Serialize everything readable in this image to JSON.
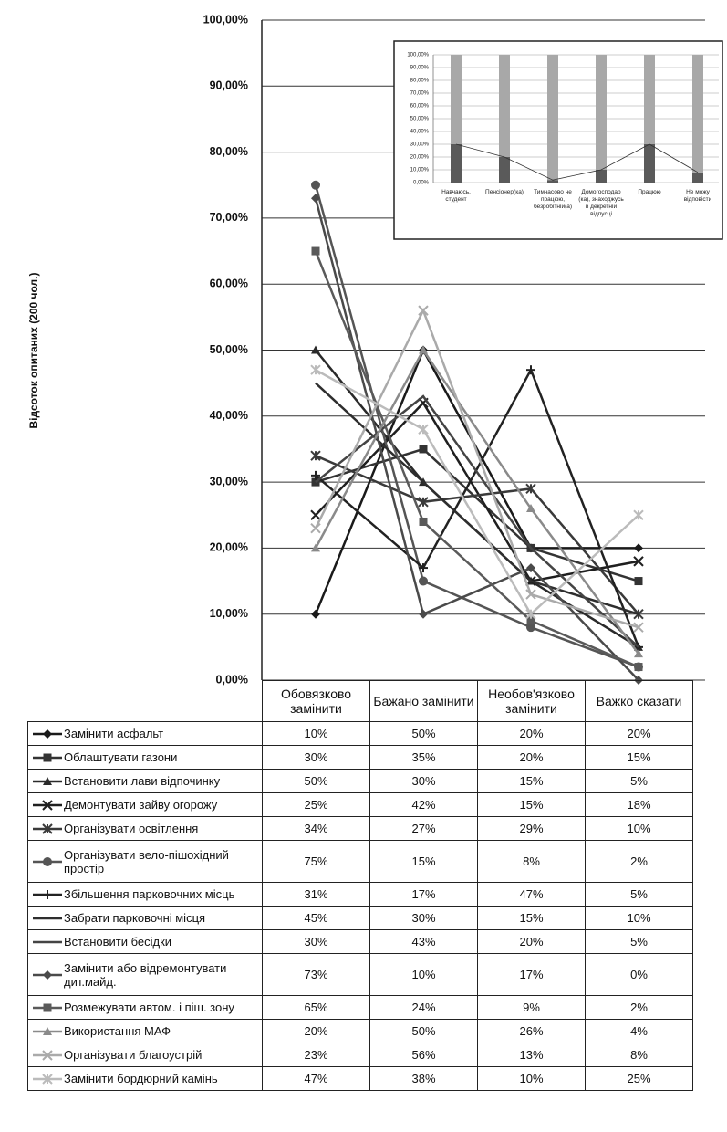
{
  "chart_data": [
    {
      "type": "line",
      "y_label": "Відсоток опитаних (200 чол.)",
      "categories": [
        "Обовязково замінити",
        "Бажано замінити",
        "Необов'язково замінити",
        "Важко сказати"
      ],
      "ylim": [
        0,
        100
      ],
      "yticks": [
        {
          "value": 0,
          "label": "0,00%"
        },
        {
          "value": 10,
          "label": "10,00%"
        },
        {
          "value": 20,
          "label": "20,00%"
        },
        {
          "value": 30,
          "label": "30,00%"
        },
        {
          "value": 40,
          "label": "40,00%"
        },
        {
          "value": 50,
          "label": "50,00%"
        },
        {
          "value": 60,
          "label": "60,00%"
        },
        {
          "value": 70,
          "label": "70,00%"
        },
        {
          "value": 80,
          "label": "80,00%"
        },
        {
          "value": 90,
          "label": "90,00%"
        },
        {
          "value": 100,
          "label": "100,00%"
        }
      ],
      "grid": true,
      "series": [
        {
          "name": "Замінити асфальт",
          "color": "#1a1a1a",
          "marker": "diamond",
          "values": [
            10,
            50,
            20,
            20
          ],
          "value_labels": [
            "10%",
            "50%",
            "20%",
            "20%"
          ]
        },
        {
          "name": "Облаштувати газони",
          "color": "#333333",
          "marker": "square",
          "values": [
            30,
            35,
            20,
            15
          ],
          "value_labels": [
            "30%",
            "35%",
            "20%",
            "15%"
          ]
        },
        {
          "name": "Встановити лави відпочинку",
          "color": "#2a2a2a",
          "marker": "triangle",
          "values": [
            50,
            30,
            15,
            5
          ],
          "value_labels": [
            "50%",
            "30%",
            "15%",
            "5%"
          ]
        },
        {
          "name": "Демонтувати зайву огорожу",
          "color": "#1f1f1f",
          "marker": "x",
          "values": [
            25,
            42,
            15,
            18
          ],
          "value_labels": [
            "25%",
            "42%",
            "15%",
            "18%"
          ]
        },
        {
          "name": "Організувати освітлення",
          "color": "#3a3a3a",
          "marker": "asterisk",
          "values": [
            34,
            27,
            29,
            10
          ],
          "value_labels": [
            "34%",
            "27%",
            "29%",
            "10%"
          ]
        },
        {
          "name": "Організувати вело-пішохідний простір",
          "color": "#555555",
          "marker": "circle",
          "values": [
            75,
            15,
            8,
            2
          ],
          "value_labels": [
            "75%",
            "15%",
            "8%",
            "2%"
          ]
        },
        {
          "name": "Збільшення парковочних місць",
          "color": "#222222",
          "marker": "plus",
          "values": [
            31,
            17,
            47,
            5
          ],
          "value_labels": [
            "31%",
            "17%",
            "47%",
            "5%"
          ]
        },
        {
          "name": "Забрати парковочні місця",
          "color": "#2e2e2e",
          "marker": "none",
          "values": [
            45,
            30,
            15,
            10
          ],
          "value_labels": [
            "45%",
            "30%",
            "15%",
            "10%"
          ]
        },
        {
          "name": "Встановити бесідки",
          "color": "#444444",
          "marker": "none",
          "values": [
            30,
            43,
            20,
            5
          ],
          "value_labels": [
            "30%",
            "43%",
            "20%",
            "5%"
          ]
        },
        {
          "name": "Замінити або відремонтувати дит.майд.",
          "color": "#4a4a4a",
          "marker": "diamond",
          "values": [
            73,
            10,
            17,
            0
          ],
          "value_labels": [
            "73%",
            "10%",
            "17%",
            "0%"
          ]
        },
        {
          "name": "Розмежувати автом. і піш. зону",
          "color": "#5a5a5a",
          "marker": "square",
          "values": [
            65,
            24,
            9,
            2
          ],
          "value_labels": [
            "65%",
            "24%",
            "9%",
            "2%"
          ]
        },
        {
          "name": "Використання МАФ",
          "color": "#8a8a8a",
          "marker": "triangle",
          "values": [
            20,
            50,
            26,
            4
          ],
          "value_labels": [
            "20%",
            "50%",
            "26%",
            "4%"
          ]
        },
        {
          "name": "Організувати благоустрій",
          "color": "#aaaaaa",
          "marker": "x",
          "values": [
            23,
            56,
            13,
            8
          ],
          "value_labels": [
            "23%",
            "56%",
            "13%",
            "8%"
          ]
        },
        {
          "name": "Замінити бордюрний камінь",
          "color": "#bbbbbb",
          "marker": "asterisk",
          "values": [
            47,
            38,
            10,
            25
          ],
          "value_labels": [
            "47%",
            "38%",
            "10%",
            "25%"
          ]
        }
      ]
    },
    {
      "type": "stacked_bar",
      "categories": [
        "Навчаюсь, студент",
        "Пенсіонер(ка)",
        "Тимчасово не працюю, безробітній(а)",
        "Домогосподар (ка), знаходжусь в декретній відпусці",
        "Працюю",
        "Не можу відповісти"
      ],
      "ylim": [
        0,
        100
      ],
      "yticks": [
        {
          "value": 0,
          "label": "0,00%"
        },
        {
          "value": 10,
          "label": "10,00%"
        },
        {
          "value": 20,
          "label": "20,00%"
        },
        {
          "value": 30,
          "label": "30,00%"
        },
        {
          "value": 40,
          "label": "40,00%"
        },
        {
          "value": 50,
          "label": "50,00%"
        },
        {
          "value": 60,
          "label": "60,00%"
        },
        {
          "value": 70,
          "label": "70,00%"
        },
        {
          "value": 80,
          "label": "80,00%"
        },
        {
          "value": 90,
          "label": "90,00%"
        },
        {
          "value": 100,
          "label": "100,00%"
        }
      ],
      "grid": true,
      "series": [
        {
          "color": "#5a5a5a",
          "values": [
            30,
            20,
            2,
            10,
            30,
            8
          ]
        },
        {
          "color": "#a8a8a8",
          "values": [
            70,
            80,
            98,
            90,
            70,
            92
          ]
        }
      ]
    }
  ]
}
